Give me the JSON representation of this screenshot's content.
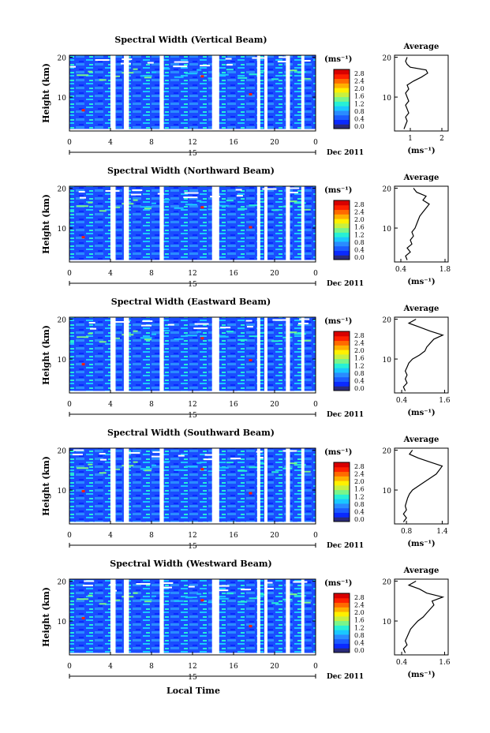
{
  "figure": {
    "xlabel": "Local Time",
    "date_label": "Dec 2011",
    "day_label": "15",
    "ylabel": "Height (km)",
    "unit_label": "(ms⁻¹)",
    "average_title": "Average",
    "colorbar": {
      "ticks": [
        "2.8",
        "2.4",
        "2.0",
        "1.6",
        "1.2",
        "0.8",
        "0.4",
        "0.0"
      ],
      "colors": [
        "#2a2a7a",
        "#0a2aff",
        "#1b5cff",
        "#2a8cff",
        "#1ac8ff",
        "#27f0d6",
        "#7af58a",
        "#c8f040",
        "#fff000",
        "#ffb000",
        "#ff6a00",
        "#ff2000",
        "#d80000"
      ]
    }
  },
  "chart_data": [
    {
      "type": "heatmap",
      "title": "Spectral Width (Vertical Beam)",
      "x_ticks": [
        "0",
        "4",
        "8",
        "12",
        "16",
        "20",
        "0"
      ],
      "y_ticks": [
        "20",
        "10"
      ],
      "xlim": [
        0,
        24
      ],
      "ylim": [
        1.5,
        20.5
      ],
      "gaps": [
        [
          4.0,
          4.5
        ],
        [
          5.3,
          5.8
        ],
        [
          8.8,
          9.2
        ],
        [
          13.9,
          14.6
        ],
        [
          18.3,
          18.6
        ],
        [
          19.0,
          19.3
        ],
        [
          21.1,
          21.5
        ],
        [
          22.6,
          22.9
        ]
      ],
      "average": {
        "xticks": [
          "1",
          "2"
        ],
        "xlim": [
          0.5,
          2.2
        ],
        "profile": [
          [
            0.8,
            2.0
          ],
          [
            0.85,
            3.0
          ],
          [
            0.9,
            4.0
          ],
          [
            0.85,
            5.0
          ],
          [
            0.95,
            6.0
          ],
          [
            0.9,
            7.0
          ],
          [
            0.85,
            8.0
          ],
          [
            0.95,
            9.0
          ],
          [
            0.9,
            10.0
          ],
          [
            0.85,
            11.0
          ],
          [
            0.95,
            12.0
          ],
          [
            0.9,
            13.0
          ],
          [
            1.1,
            14.0
          ],
          [
            1.35,
            15.0
          ],
          [
            1.55,
            16.0
          ],
          [
            1.5,
            16.8
          ],
          [
            1.0,
            17.5
          ],
          [
            0.9,
            18.2
          ],
          [
            0.85,
            19.0
          ],
          [
            0.9,
            20.0
          ]
        ]
      }
    },
    {
      "type": "heatmap",
      "title": "Spectral Width (Northward Beam)",
      "x_ticks": [
        "0",
        "4",
        "8",
        "12",
        "16",
        "20",
        "0"
      ],
      "y_ticks": [
        "20",
        "10"
      ],
      "xlim": [
        0,
        24
      ],
      "ylim": [
        1.5,
        20.5
      ],
      "gaps": [
        [
          4.0,
          4.5
        ],
        [
          5.3,
          5.8
        ],
        [
          8.8,
          9.2
        ],
        [
          13.9,
          14.6
        ],
        [
          18.3,
          18.6
        ],
        [
          19.0,
          19.3
        ],
        [
          21.1,
          21.5
        ],
        [
          22.6,
          22.9
        ]
      ],
      "average": {
        "xticks": [
          "0.4",
          "1.8"
        ],
        "xlim": [
          0.2,
          1.9
        ],
        "profile": [
          [
            0.6,
            2.0
          ],
          [
            0.55,
            3.0
          ],
          [
            0.7,
            4.0
          ],
          [
            0.6,
            5.0
          ],
          [
            0.75,
            6.0
          ],
          [
            0.7,
            7.0
          ],
          [
            0.8,
            8.0
          ],
          [
            0.75,
            9.0
          ],
          [
            0.85,
            10.0
          ],
          [
            0.9,
            11.0
          ],
          [
            0.95,
            12.0
          ],
          [
            1.0,
            13.0
          ],
          [
            1.1,
            14.0
          ],
          [
            1.2,
            15.0
          ],
          [
            1.3,
            16.0
          ],
          [
            1.1,
            17.0
          ],
          [
            1.2,
            18.0
          ],
          [
            0.9,
            19.0
          ],
          [
            0.8,
            20.0
          ]
        ]
      }
    },
    {
      "type": "heatmap",
      "title": "Spectral Width (Eastward Beam)",
      "x_ticks": [
        "0",
        "4",
        "8",
        "12",
        "16",
        "20",
        "0"
      ],
      "y_ticks": [
        "20",
        "10"
      ],
      "xlim": [
        0,
        24
      ],
      "ylim": [
        1.5,
        20.5
      ],
      "gaps": [
        [
          4.0,
          4.5
        ],
        [
          5.3,
          5.8
        ],
        [
          8.8,
          9.2
        ],
        [
          13.9,
          14.6
        ],
        [
          18.3,
          18.6
        ],
        [
          19.0,
          19.3
        ],
        [
          21.1,
          21.5
        ],
        [
          22.6,
          22.9
        ]
      ],
      "average": {
        "xticks": [
          "0.4",
          "1.6"
        ],
        "xlim": [
          0.2,
          1.7
        ],
        "profile": [
          [
            0.5,
            2.0
          ],
          [
            0.45,
            3.0
          ],
          [
            0.55,
            4.0
          ],
          [
            0.5,
            5.0
          ],
          [
            0.55,
            6.0
          ],
          [
            0.5,
            7.0
          ],
          [
            0.55,
            8.0
          ],
          [
            0.6,
            9.0
          ],
          [
            0.7,
            10.0
          ],
          [
            0.9,
            11.0
          ],
          [
            1.05,
            12.0
          ],
          [
            1.1,
            13.0
          ],
          [
            1.2,
            14.0
          ],
          [
            1.3,
            15.0
          ],
          [
            1.55,
            16.0
          ],
          [
            1.2,
            17.0
          ],
          [
            0.9,
            18.0
          ],
          [
            0.6,
            19.0
          ],
          [
            0.8,
            20.0
          ]
        ]
      }
    },
    {
      "type": "heatmap",
      "title": "Spectral Width (Southward Beam)",
      "x_ticks": [
        "0",
        "4",
        "8",
        "12",
        "16",
        "20",
        "0"
      ],
      "y_ticks": [
        "20",
        "10"
      ],
      "xlim": [
        0,
        24
      ],
      "ylim": [
        1.5,
        20.5
      ],
      "gaps": [
        [
          4.0,
          4.5
        ],
        [
          5.3,
          5.8
        ],
        [
          8.8,
          9.2
        ],
        [
          13.9,
          14.6
        ],
        [
          18.3,
          18.6
        ],
        [
          19.0,
          19.3
        ],
        [
          21.1,
          21.5
        ],
        [
          22.6,
          22.9
        ]
      ],
      "average": {
        "xticks": [
          "0.8",
          "1.4"
        ],
        "xlim": [
          0.6,
          1.5
        ],
        "profile": [
          [
            0.75,
            2.0
          ],
          [
            0.8,
            3.0
          ],
          [
            0.75,
            4.0
          ],
          [
            0.8,
            5.0
          ],
          [
            0.78,
            6.0
          ],
          [
            0.8,
            7.0
          ],
          [
            0.82,
            8.0
          ],
          [
            0.85,
            9.0
          ],
          [
            0.9,
            10.0
          ],
          [
            1.0,
            11.0
          ],
          [
            1.1,
            12.0
          ],
          [
            1.2,
            13.0
          ],
          [
            1.3,
            14.0
          ],
          [
            1.35,
            15.0
          ],
          [
            1.4,
            16.0
          ],
          [
            1.2,
            17.0
          ],
          [
            1.0,
            18.0
          ],
          [
            0.85,
            19.0
          ],
          [
            0.9,
            20.0
          ]
        ]
      }
    },
    {
      "type": "heatmap",
      "title": "Spectral Width (Westward Beam)",
      "x_ticks": [
        "0",
        "4",
        "8",
        "12",
        "16",
        "20",
        "0"
      ],
      "y_ticks": [
        "20",
        "10"
      ],
      "xlim": [
        0,
        24
      ],
      "ylim": [
        1.5,
        20.5
      ],
      "gaps": [
        [
          4.0,
          4.5
        ],
        [
          5.3,
          5.8
        ],
        [
          8.8,
          9.2
        ],
        [
          13.9,
          14.6
        ],
        [
          18.3,
          18.6
        ],
        [
          19.0,
          19.3
        ],
        [
          21.1,
          21.5
        ],
        [
          22.6,
          22.9
        ]
      ],
      "average": {
        "xticks": [
          "0.4",
          "1.6"
        ],
        "xlim": [
          0.2,
          1.7
        ],
        "profile": [
          [
            0.5,
            2.0
          ],
          [
            0.45,
            3.0
          ],
          [
            0.55,
            4.0
          ],
          [
            0.5,
            5.0
          ],
          [
            0.55,
            6.0
          ],
          [
            0.6,
            7.0
          ],
          [
            0.65,
            8.0
          ],
          [
            0.75,
            9.0
          ],
          [
            0.85,
            10.0
          ],
          [
            1.0,
            11.0
          ],
          [
            1.1,
            12.0
          ],
          [
            1.2,
            13.0
          ],
          [
            1.3,
            14.0
          ],
          [
            1.25,
            15.0
          ],
          [
            1.55,
            16.0
          ],
          [
            1.1,
            17.0
          ],
          [
            0.9,
            18.0
          ],
          [
            0.6,
            19.0
          ],
          [
            0.8,
            20.0
          ]
        ]
      }
    }
  ]
}
